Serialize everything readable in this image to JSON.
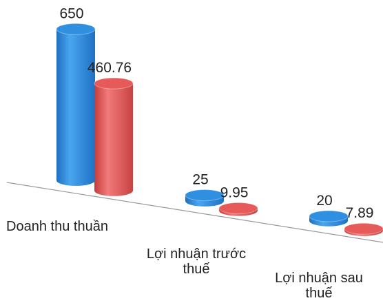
{
  "chart_data": {
    "type": "cylinder-bar",
    "categories": [
      "Doanh thu thuần",
      "Lợi nhuận trước thuế",
      "Lợi nhuận sau thuế"
    ],
    "series": [
      {
        "color": "#2f8fe0",
        "values": [
          650,
          25,
          20
        ]
      },
      {
        "color": "#e65a5a",
        "values": [
          460.76,
          9.95,
          7.89
        ]
      }
    ]
  }
}
